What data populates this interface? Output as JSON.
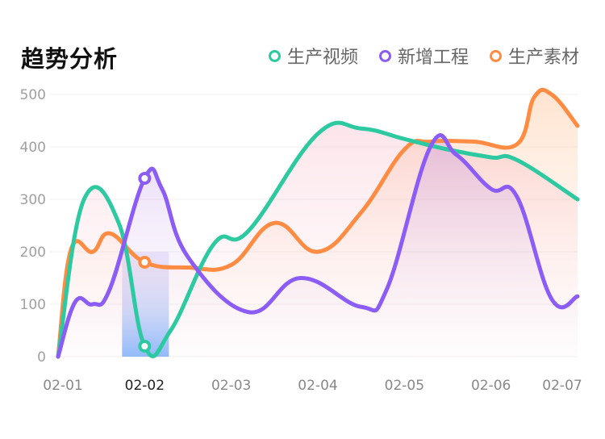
{
  "title": "趋势分析",
  "legend": [
    {
      "label": "生产视频",
      "color": "#2dc9a0"
    },
    {
      "label": "新增工程",
      "color": "#8b5cf6"
    },
    {
      "label": "生产素材",
      "color": "#ff8c42"
    }
  ],
  "chart_data": {
    "type": "line",
    "title": "趋势分析",
    "categories": [
      "02-01",
      "02-02",
      "02-03",
      "02-04",
      "02-05",
      "02-06",
      "02-07"
    ],
    "ylim": [
      0,
      500
    ],
    "yticks": [
      0,
      100,
      200,
      300,
      400,
      500
    ],
    "grid": true,
    "legend_position": "top-right",
    "highlight_category": "02-02",
    "series": [
      {
        "name": "生产视频",
        "color": "#2dc9a0",
        "x": [
          0,
          0.3,
          0.7,
          1.0,
          1.3,
          1.8,
          2.2,
          3.0,
          3.5,
          4.0,
          4.5,
          5.0,
          5.3,
          6.0
        ],
        "values": [
          0,
          300,
          255,
          20,
          50,
          215,
          240,
          425,
          435,
          415,
          395,
          380,
          375,
          300
        ]
      },
      {
        "name": "新增工程",
        "color": "#8b5cf6",
        "x": [
          0,
          0.2,
          0.4,
          0.6,
          1.0,
          1.2,
          1.5,
          2.2,
          2.8,
          3.5,
          3.8,
          4.3,
          4.6,
          5.0,
          5.3,
          5.7,
          6.0
        ],
        "values": [
          0,
          105,
          100,
          130,
          340,
          320,
          190,
          85,
          150,
          95,
          130,
          400,
          385,
          320,
          305,
          110,
          115
        ]
      },
      {
        "name": "生产素材",
        "color": "#ff8c42",
        "x": [
          0,
          0.15,
          0.4,
          0.6,
          1.0,
          1.5,
          2.0,
          2.5,
          3.0,
          3.5,
          4.0,
          4.3,
          4.8,
          5.3,
          5.5,
          5.7,
          6.0
        ],
        "values": [
          0,
          205,
          200,
          235,
          180,
          170,
          175,
          255,
          200,
          275,
          395,
          410,
          410,
          405,
          495,
          500,
          440
        ]
      }
    ],
    "markers": [
      {
        "series": "新增工程",
        "x": 1.0,
        "value": 340
      },
      {
        "series": "生产素材",
        "x": 1.0,
        "value": 180
      },
      {
        "series": "生产视频",
        "x": 1.0,
        "value": 20
      }
    ]
  }
}
